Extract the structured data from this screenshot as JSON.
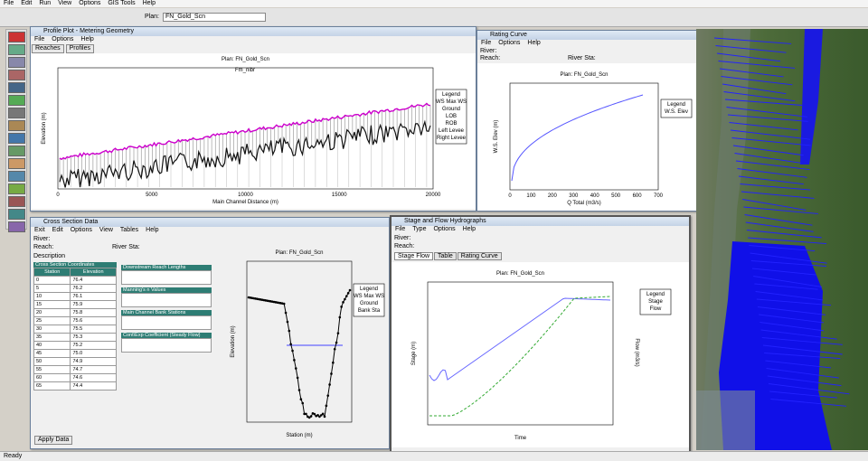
{
  "app": {
    "menu": [
      "File",
      "Edit",
      "Run",
      "View",
      "Options",
      "GIS Tools",
      "Help"
    ],
    "plan_label": "Plan:",
    "plan_value": "FN_Gold_Scn",
    "status": "Ready"
  },
  "profile_plot": {
    "title": "Profile Plot - Metering Geometry",
    "menu": [
      "File",
      "Options",
      "Help"
    ],
    "reaches_button": "Reaches",
    "profiles_button": "Profiles",
    "plot_title": "Plan: FN_Gold_Scn",
    "plot_subtitle": "Fm_nibr",
    "x_label": "Main Channel Distance (m)",
    "y_label": "Elevation (m)",
    "legend_title": "Legend",
    "legend": [
      "WS Max WS",
      "Ground",
      "LOB",
      "ROB",
      "Left Levee",
      "Right Levee"
    ],
    "x_ticks": [
      "0",
      "5000",
      "10000",
      "15000",
      "20000"
    ]
  },
  "rating_curve": {
    "title": "Rating Curve",
    "menu": [
      "File",
      "Options",
      "Help"
    ],
    "river_label": "River:",
    "reach_label": "Reach:",
    "river_station_label": "River Sta:",
    "plot_title": "Plan: FN_Gold_Scn",
    "x_label": "Q Total (m3/s)",
    "y_label": "W.S. Elev (m)",
    "legend_title": "Legend",
    "legend": [
      "W.S. Elev"
    ],
    "x_ticks": [
      "0",
      "100",
      "200",
      "300",
      "400",
      "500",
      "600",
      "700"
    ]
  },
  "cross_section": {
    "title": "Cross Section Data",
    "menu": [
      "Exit",
      "Edit",
      "Options",
      "View",
      "Tables",
      "Help"
    ],
    "river_label": "River:",
    "reach_label": "Reach:",
    "river_station_label": "River Sta:",
    "description_label": "Description",
    "table_title": "Cross Section Coordinates",
    "columns": [
      "Station",
      "Elevation"
    ],
    "rows": [
      [
        "0",
        "76.4"
      ],
      [
        "5",
        "76.2"
      ],
      [
        "10",
        "76.1"
      ],
      [
        "15",
        "75.9"
      ],
      [
        "20",
        "75.8"
      ],
      [
        "25",
        "75.6"
      ],
      [
        "30",
        "75.5"
      ],
      [
        "35",
        "75.3"
      ],
      [
        "40",
        "75.2"
      ],
      [
        "45",
        "75.0"
      ],
      [
        "50",
        "74.9"
      ],
      [
        "55",
        "74.7"
      ],
      [
        "60",
        "74.6"
      ],
      [
        "65",
        "74.4"
      ]
    ],
    "side_labels": [
      "Downstream Reach Lengths",
      "Manning's n Values",
      "Main Channel Bank Stations",
      "Cont\\Exp Coefficient (Steady Flow)"
    ],
    "plot_title": "Plan: FN_Gold_Scn",
    "x_label": "Station (m)",
    "y_label": "Elevation (m)",
    "legend_title": "Legend",
    "legend": [
      "WS Max WS",
      "Ground",
      "Bank Sta"
    ],
    "apply_button": "Apply Data"
  },
  "hydrograph": {
    "title": "Stage and Flow Hydrographs",
    "menu": [
      "File",
      "Type",
      "Options",
      "Help"
    ],
    "river_label": "River:",
    "reach_label": "Reach:",
    "tabs": [
      "Stage Flow",
      "Table",
      "Rating Curve"
    ],
    "plot_title": "Plan: FN_Gold_Scn",
    "y_label": "Stage (m)",
    "y2_label": "Flow (m3/s)",
    "x_label": "Time",
    "legend_title": "Legend",
    "legend": [
      "Stage",
      "Flow"
    ]
  }
}
